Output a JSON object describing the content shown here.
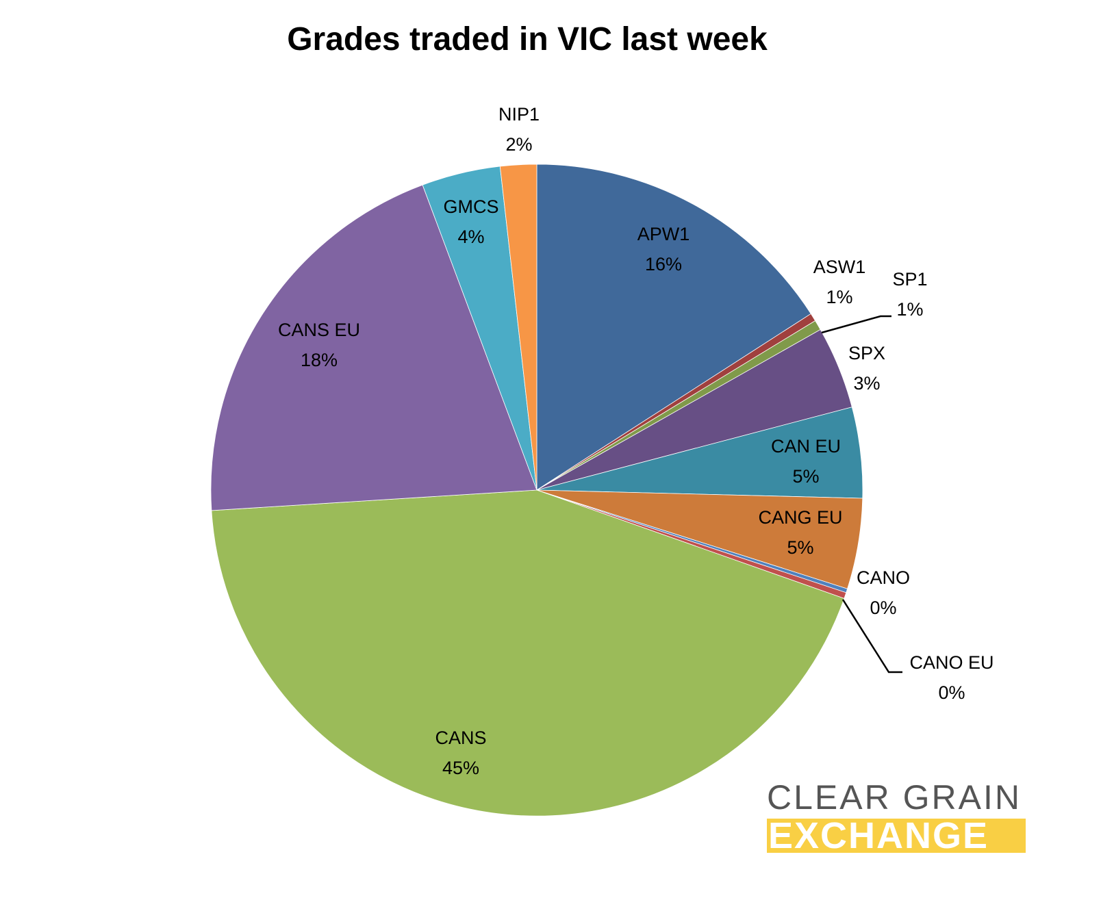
{
  "chart_data": {
    "type": "pie",
    "title": "Grades traded in VIC last week",
    "start_angle_deg": 0,
    "direction": "clockwise",
    "legend": "none (data labels on slices)",
    "slices": [
      {
        "label": "APW1",
        "value": 16,
        "display": "16%",
        "color": "#40699a"
      },
      {
        "label": "ASW1",
        "value": 1,
        "display": "1%",
        "color": "#a0403e"
      },
      {
        "label": "SP1",
        "value": 1,
        "display": "1%",
        "color": "#809a4a"
      },
      {
        "label": "SPX",
        "value": 3,
        "display": "3%",
        "color": "#674f85"
      },
      {
        "label": "CAN EU",
        "value": 5,
        "display": "5%",
        "color": "#3a8ba3"
      },
      {
        "label": "CANG EU",
        "value": 5,
        "display": "5%",
        "color": "#cd7b3a"
      },
      {
        "label": "CANO",
        "value": 0,
        "display": "0%",
        "color": "#4f81bd"
      },
      {
        "label": "CANO EU",
        "value": 0,
        "display": "0%",
        "color": "#c0504d"
      },
      {
        "label": "CANS",
        "value": 45,
        "display": "45%",
        "color": "#9bbb59"
      },
      {
        "label": "CANS EU",
        "value": 18,
        "display": "18%",
        "color": "#8064a2"
      },
      {
        "label": "GMCS",
        "value": 4,
        "display": "4%",
        "color": "#4bacc6"
      },
      {
        "label": "NIP1",
        "value": 2,
        "display": "2%",
        "color": "#f79646"
      }
    ],
    "estimated_fractions": [
      0.159,
      0.004,
      0.005,
      0.041,
      0.045,
      0.045,
      0.002,
      0.003,
      0.436,
      0.203,
      0.039,
      0.018
    ]
  },
  "labels": [
    {
      "name": "APW1",
      "pct": "16%"
    },
    {
      "name": "ASW1",
      "pct": "1%"
    },
    {
      "name": "SP1",
      "pct": "1%"
    },
    {
      "name": "SPX",
      "pct": "3%"
    },
    {
      "name": "CAN EU",
      "pct": "5%"
    },
    {
      "name": "CANG EU",
      "pct": "5%"
    },
    {
      "name": "CANO",
      "pct": "0%"
    },
    {
      "name": "CANO EU",
      "pct": "0%"
    },
    {
      "name": "CANS",
      "pct": "45%"
    },
    {
      "name": "CANS EU",
      "pct": "18%"
    },
    {
      "name": "GMCS",
      "pct": "4%"
    },
    {
      "name": "NIP1",
      "pct": "2%"
    }
  ],
  "logo": {
    "line1": "CLEAR GRAIN",
    "line2": "EXCHANGE",
    "text_color": "#555555",
    "band_color": "#f9cf44"
  }
}
